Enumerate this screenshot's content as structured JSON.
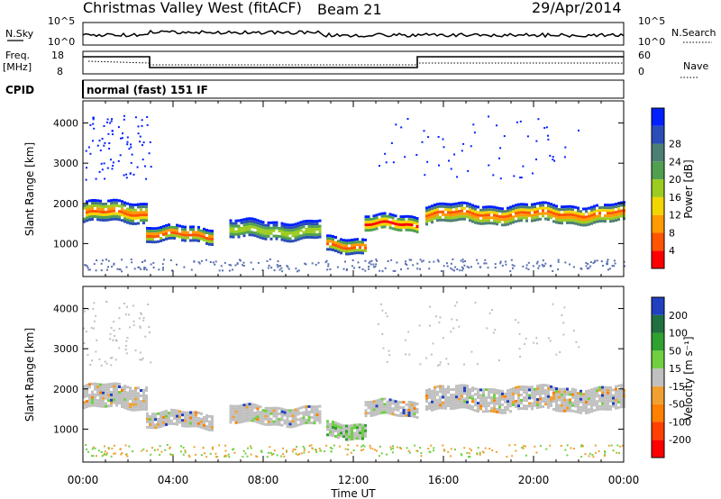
{
  "header": {
    "site_title": "Christmas Valley West (fitACF)",
    "beam": "Beam 21",
    "date": "29/Apr/2014"
  },
  "strip_panels": {
    "nsky": {
      "label": "N.Sky",
      "ticks": [
        "10^5",
        "10^0"
      ]
    },
    "nsearch": {
      "label": "N.Search",
      "ticks": [
        "10^5",
        "10^0"
      ]
    },
    "freq": {
      "label": "Freq.",
      "unit": "[MHz]",
      "ticks": [
        "18",
        "8"
      ]
    },
    "nave": {
      "label": "Nave",
      "ticks": [
        "60",
        "0"
      ]
    },
    "cpid": {
      "label": "CPID",
      "value": "normal (fast) 151 IF"
    }
  },
  "chart_data": [
    {
      "type": "heatmap",
      "name": "power",
      "ylabel": "Slant Range [km]",
      "xlabel": "Time UT",
      "xlim": [
        0,
        24
      ],
      "ylim": [
        180,
        4550
      ],
      "x_ticks": [
        "00:00",
        "04:00",
        "08:00",
        "12:00",
        "16:00",
        "20:00",
        "00:00"
      ],
      "y_ticks": [
        "1000",
        "2000",
        "3000",
        "4000"
      ],
      "colorbar": {
        "label": "Power [dB]",
        "tick_labels": [
          "4",
          "8",
          "12",
          "16",
          "20",
          "24",
          "28"
        ],
        "colors": [
          "#0020ff",
          "#2a4db8",
          "#4e7f74",
          "#50a050",
          "#9ccc20",
          "#f2d600",
          "#ff9a00",
          "#ff5500",
          "#ff0000"
        ]
      },
      "bands": [
        {
          "t": [
            0,
            2.8
          ],
          "center": 1800,
          "width": 500,
          "palette": "power"
        },
        {
          "t": [
            2.8,
            5.8
          ],
          "center": 1250,
          "width": 350,
          "palette": "power"
        },
        {
          "t": [
            6.5,
            10.5
          ],
          "center": 1350,
          "width": 450,
          "palette": "power_weak"
        },
        {
          "t": [
            10.8,
            12.6
          ],
          "center": 1000,
          "width": 350,
          "palette": "power"
        },
        {
          "t": [
            12.5,
            14.8
          ],
          "center": 1500,
          "width": 400,
          "palette": "power"
        },
        {
          "t": [
            15.2,
            24
          ],
          "center": 1750,
          "width": 450,
          "palette": "power"
        }
      ]
    },
    {
      "type": "heatmap",
      "name": "velocity",
      "ylabel": "Slant Range [km]",
      "xlabel": "Time UT",
      "xlim": [
        0,
        24
      ],
      "ylim": [
        180,
        4550
      ],
      "x_ticks": [
        "00:00",
        "04:00",
        "08:00",
        "12:00",
        "16:00",
        "20:00",
        "00:00"
      ],
      "y_ticks": [
        "1000",
        "2000",
        "3000",
        "4000"
      ],
      "colorbar": {
        "label": "Velocity [m s⁻¹]",
        "tick_labels": [
          "200",
          "100",
          "50",
          "15",
          "-15",
          "-50",
          "-100",
          "-200"
        ],
        "colors": [
          "#2040c0",
          "#207040",
          "#30a030",
          "#70d040",
          "#c0c0c0",
          "#f0a030",
          "#ff8000",
          "#ff4000",
          "#ff0000"
        ]
      },
      "bands": [
        {
          "t": [
            0,
            2.8
          ],
          "center": 1800,
          "width": 600,
          "palette": "velocity"
        },
        {
          "t": [
            2.8,
            5.8
          ],
          "center": 1250,
          "width": 350,
          "palette": "velocity"
        },
        {
          "t": [
            6.5,
            10.5
          ],
          "center": 1350,
          "width": 450,
          "palette": "velocity"
        },
        {
          "t": [
            10.8,
            12.6
          ],
          "center": 1000,
          "width": 350,
          "palette": "velocity_green"
        },
        {
          "t": [
            12.5,
            14.8
          ],
          "center": 1500,
          "width": 400,
          "palette": "velocity"
        },
        {
          "t": [
            15.2,
            24
          ],
          "center": 1750,
          "width": 600,
          "palette": "velocity"
        }
      ]
    }
  ]
}
